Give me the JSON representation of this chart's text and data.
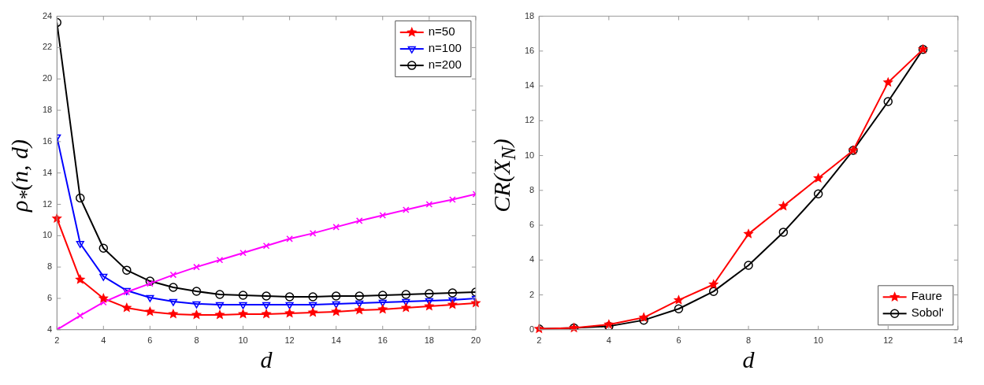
{
  "chart_data": [
    {
      "type": "line",
      "xlabel": "d",
      "ylabel": "ρ$_{*}$(n, d)",
      "x": [
        2,
        3,
        4,
        5,
        6,
        7,
        8,
        9,
        10,
        11,
        12,
        13,
        14,
        15,
        16,
        17,
        18,
        19,
        20
      ],
      "xlim": [
        2,
        20
      ],
      "xticks": [
        2,
        4,
        6,
        8,
        10,
        12,
        14,
        16,
        18,
        20
      ],
      "ylim": [
        4,
        24
      ],
      "yticks": [
        4,
        6,
        8,
        10,
        12,
        14,
        16,
        18,
        20,
        22,
        24
      ],
      "grid": false,
      "legend": "top right",
      "series": [
        {
          "color": "#ff00ff",
          "marker": "cross",
          "values": [
            4.0,
            4.9,
            5.75,
            6.4,
            6.95,
            7.5,
            8.0,
            8.45,
            8.9,
            9.35,
            9.8,
            10.15,
            10.55,
            10.95,
            11.3,
            11.65,
            12.0,
            12.3,
            12.65
          ]
        },
        {
          "name": "n=50",
          "color": "#ff0000",
          "marker": "star",
          "values": [
            11.1,
            7.2,
            6.0,
            5.4,
            5.15,
            5.0,
            4.95,
            4.95,
            5.0,
            5.0,
            5.05,
            5.1,
            5.15,
            5.25,
            5.3,
            5.4,
            5.5,
            5.6,
            5.7
          ]
        },
        {
          "name": "n=100",
          "color": "#0000ff",
          "marker": "triangle",
          "values": [
            16.3,
            9.5,
            7.4,
            6.5,
            6.05,
            5.8,
            5.65,
            5.6,
            5.6,
            5.6,
            5.6,
            5.6,
            5.65,
            5.7,
            5.75,
            5.8,
            5.85,
            5.9,
            6.0
          ]
        },
        {
          "name": "n=200",
          "color": "#000000",
          "marker": "circle",
          "values": [
            23.6,
            12.4,
            9.2,
            7.8,
            7.1,
            6.7,
            6.45,
            6.25,
            6.2,
            6.15,
            6.1,
            6.1,
            6.15,
            6.15,
            6.2,
            6.25,
            6.3,
            6.35,
            6.4
          ]
        }
      ]
    },
    {
      "type": "line",
      "xlabel": "d",
      "ylabel": "CR(X$_{N}$)",
      "x": [
        2,
        3,
        4,
        5,
        6,
        7,
        8,
        9,
        10,
        11,
        12,
        13
      ],
      "xlim": [
        2,
        14
      ],
      "xticks": [
        2,
        4,
        6,
        8,
        10,
        12,
        14
      ],
      "ylim": [
        0,
        18
      ],
      "yticks": [
        0,
        2,
        4,
        6,
        8,
        10,
        12,
        14,
        16,
        18
      ],
      "grid": false,
      "legend": "bottom right",
      "series": [
        {
          "name": "Faure",
          "color": "#ff0000",
          "marker": "star",
          "values": [
            0.05,
            0.1,
            0.3,
            0.7,
            1.7,
            2.6,
            5.5,
            7.1,
            8.7,
            10.3,
            14.2,
            16.1
          ]
        },
        {
          "name": "Sobol'",
          "color": "#000000",
          "marker": "circle",
          "values": [
            0.05,
            0.1,
            0.2,
            0.55,
            1.2,
            2.2,
            3.7,
            5.6,
            7.8,
            10.3,
            13.1,
            16.1
          ]
        }
      ]
    }
  ]
}
